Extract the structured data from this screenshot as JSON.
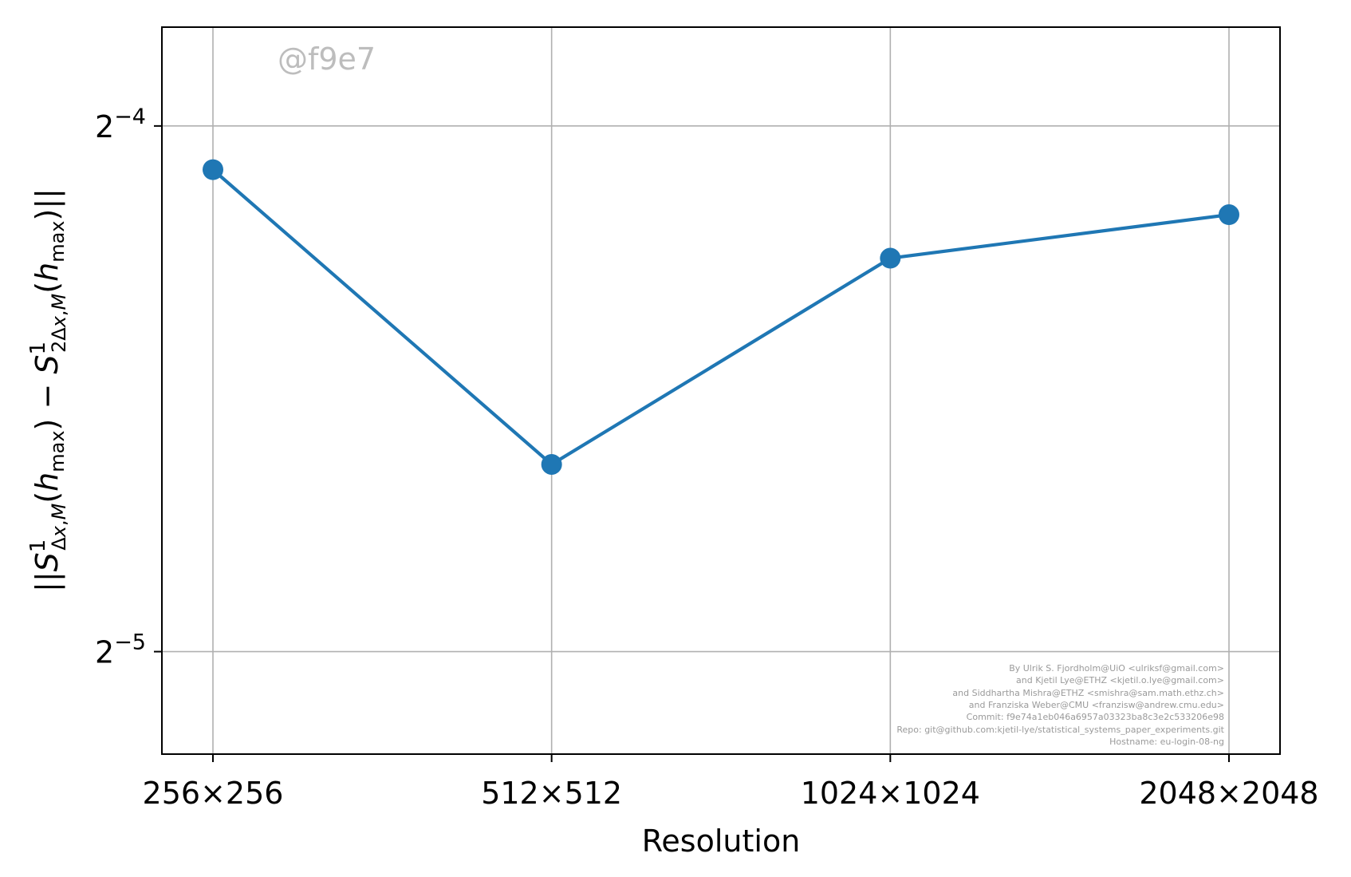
{
  "chart_data": {
    "type": "line",
    "categories": [
      "256×256",
      "512×512",
      "1024×1024",
      "2048×2048"
    ],
    "series": [
      {
        "values": [
          0.059,
          0.04,
          0.0525,
          0.0556
        ]
      }
    ],
    "xlabel": "Resolution",
    "ylabel": "||S¹Δx,M(hmax) − S¹2Δx,M(hmax)||",
    "yscale": "log2",
    "ylim": [
      0.0273,
      0.0712
    ],
    "yticks": [
      {
        "value": 0.0625,
        "base": "2",
        "exp": "−4"
      },
      {
        "value": 0.03125,
        "base": "2",
        "exp": "−5"
      }
    ],
    "grid": true,
    "line_color": "#1f77b4"
  },
  "watermark": "@f9e7",
  "credits": [
    "By Ulrik S. Fjordholm@UiO <ulriksf@gmail.com>",
    "and Kjetil Lye@ETHZ <kjetil.o.lye@gmail.com>",
    "and Siddhartha Mishra@ETHZ <smishra@sam.math.ethz.ch>",
    "and Franziska Weber@CMU <franzisw@andrew.cmu.edu>",
    "Commit: f9e74a1eb046a6957a03323ba8c3e2c533206e98",
    "Repo: git@github.com:kjetil-lye/statistical_systems_paper_experiments.git",
    "Hostname: eu-login-08-ng"
  ]
}
